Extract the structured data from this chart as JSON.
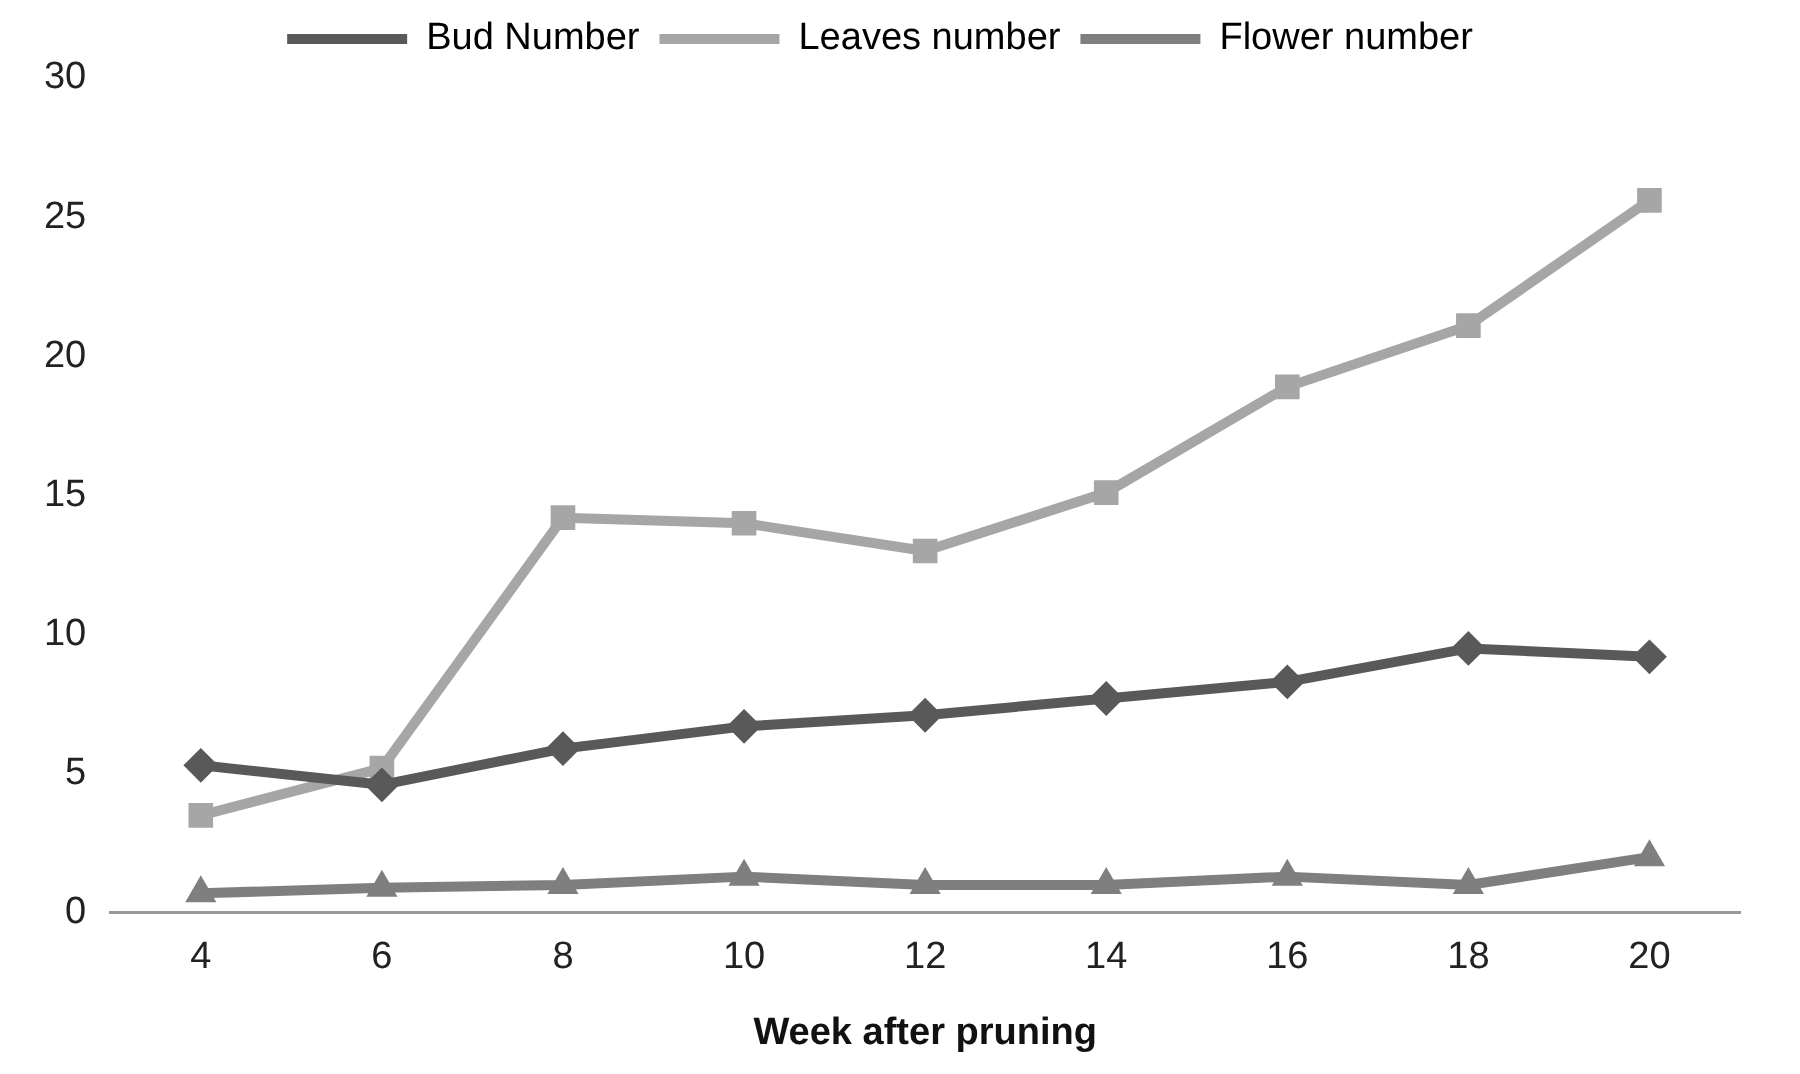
{
  "chart_data": {
    "type": "line",
    "xlabel": "Week after pruning",
    "categories": [
      "4",
      "6",
      "8",
      "10",
      "12",
      "14",
      "16",
      "18",
      "20"
    ],
    "series": [
      {
        "name": "Bud Number",
        "color": "#595959",
        "marker": "diamond",
        "values": [
          5.3,
          4.6,
          5.9,
          6.7,
          7.1,
          7.7,
          8.3,
          9.5,
          9.2
        ]
      },
      {
        "name": "Leaves number",
        "color": "#a6a6a6",
        "marker": "square",
        "values": [
          3.5,
          5.2,
          14.2,
          14.0,
          13.0,
          15.1,
          18.9,
          21.1,
          25.6
        ]
      },
      {
        "name": "Flower number",
        "color": "#7f7f7f",
        "marker": "triangle",
        "values": [
          0.7,
          0.9,
          1.0,
          1.3,
          1.0,
          1.0,
          1.3,
          1.0,
          2.0
        ]
      }
    ],
    "ylim": [
      0,
      30
    ],
    "yticks": [
      0,
      5,
      10,
      15,
      20,
      25,
      30
    ],
    "grid": false,
    "legend": "top",
    "line_style": "solid"
  }
}
